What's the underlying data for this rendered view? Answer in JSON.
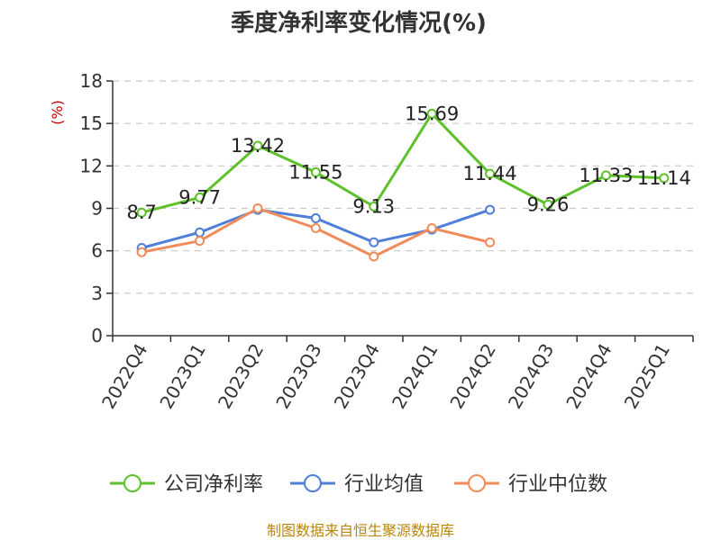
{
  "chart_data": {
    "type": "line",
    "title": "季度净利率变化情况(%)",
    "ylabel": "(%)",
    "xlabel": "",
    "categories": [
      "2022Q4",
      "2023Q1",
      "2023Q2",
      "2023Q3",
      "2023Q4",
      "2024Q1",
      "2024Q2",
      "2024Q3",
      "2024Q4",
      "2025Q1"
    ],
    "ylim": [
      0,
      18
    ],
    "yticks": [
      0,
      3,
      6,
      9,
      12,
      15,
      18
    ],
    "grid": true,
    "legend_position": "bottom",
    "series": [
      {
        "name": "公司净利率",
        "color": "#5ec12a",
        "values": [
          8.7,
          9.77,
          13.42,
          11.55,
          9.13,
          15.69,
          11.44,
          9.26,
          11.33,
          11.14
        ],
        "labels": [
          "8.7",
          "9.77",
          "13.42",
          "11.55",
          "9.13",
          "15.69",
          "11.44",
          "9.26",
          "11.33",
          "11.14"
        ]
      },
      {
        "name": "行业均值",
        "color": "#4f7fd9",
        "values": [
          6.2,
          7.3,
          8.9,
          8.3,
          6.6,
          7.5,
          8.9,
          null,
          null,
          null
        ]
      },
      {
        "name": "行业中位数",
        "color": "#f28b5a",
        "values": [
          5.9,
          6.7,
          9.0,
          7.6,
          5.6,
          7.6,
          6.6,
          null,
          null,
          null
        ]
      }
    ]
  },
  "footer": {
    "source": "制图数据来自恒生聚源数据库"
  }
}
